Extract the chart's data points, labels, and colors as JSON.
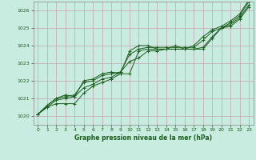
{
  "title": "Graphe pression niveau de la mer (hPa)",
  "bg_color": "#c8ece0",
  "grid_color": "#b0c8b0",
  "line_color": "#1a5c1a",
  "xlim": [
    -0.5,
    23.5
  ],
  "ylim": [
    1019.5,
    1026.5
  ],
  "yticks": [
    1020,
    1021,
    1022,
    1023,
    1024,
    1025,
    1026
  ],
  "xticks": [
    0,
    1,
    2,
    3,
    4,
    5,
    6,
    7,
    8,
    9,
    10,
    11,
    12,
    13,
    14,
    15,
    16,
    17,
    18,
    19,
    20,
    21,
    22,
    23
  ],
  "series": [
    [
      1020.1,
      1020.5,
      1020.7,
      1020.7,
      1020.7,
      1021.3,
      1021.7,
      1021.9,
      1022.1,
      1022.4,
      1022.4,
      1023.7,
      1023.8,
      1023.8,
      1023.8,
      1023.8,
      1023.8,
      1023.8,
      1023.8,
      1024.4,
      1025.0,
      1025.1,
      1025.5,
      1026.2
    ],
    [
      1020.1,
      1020.5,
      1020.9,
      1021.0,
      1021.1,
      1021.6,
      1021.8,
      1022.1,
      1022.2,
      1022.5,
      1023.1,
      1023.3,
      1023.7,
      1023.7,
      1023.8,
      1023.8,
      1023.8,
      1023.8,
      1023.9,
      1024.5,
      1025.0,
      1025.2,
      1025.6,
      1026.3
    ],
    [
      1020.1,
      1020.6,
      1021.0,
      1021.1,
      1021.2,
      1021.9,
      1022.0,
      1022.3,
      1022.4,
      1022.5,
      1023.5,
      1023.8,
      1023.9,
      1023.9,
      1023.9,
      1023.9,
      1023.9,
      1023.9,
      1024.3,
      1024.8,
      1025.0,
      1025.3,
      1025.7,
      1026.5
    ],
    [
      1020.1,
      1020.6,
      1021.0,
      1021.2,
      1021.1,
      1022.0,
      1022.1,
      1022.4,
      1022.5,
      1022.4,
      1023.7,
      1024.0,
      1024.0,
      1023.8,
      1023.8,
      1024.0,
      1023.8,
      1024.0,
      1024.5,
      1024.9,
      1025.1,
      1025.4,
      1025.8,
      1026.6
    ]
  ]
}
